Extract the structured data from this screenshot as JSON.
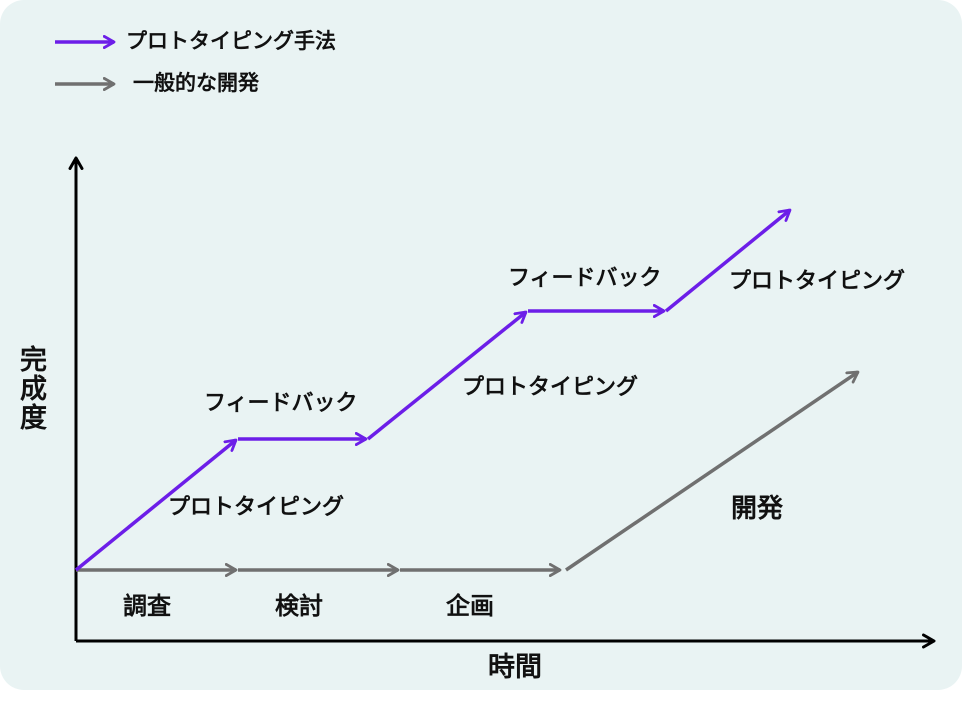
{
  "legend": {
    "prototyping": "プロトタイピング手法",
    "general": "一般的な開発"
  },
  "colors": {
    "prototyping": "#6c1ee8",
    "general": "#707070",
    "axis": "#000000",
    "panel": "#e9f3f3"
  },
  "axes": {
    "y_label": "完成度",
    "x_label": "時間"
  },
  "prototyping_path": {
    "labels": [
      "プロトタイピング",
      "フィードバック",
      "プロトタイピング",
      "フィードバック",
      "プロトタイピング"
    ]
  },
  "general_path": {
    "stages": [
      "調査",
      "検討",
      "企画"
    ],
    "final": "開発"
  }
}
